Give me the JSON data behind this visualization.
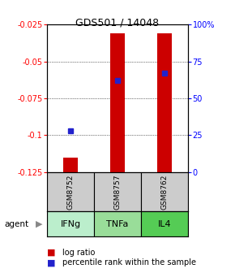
{
  "title": "GDS501 / 14048",
  "samples": [
    "GSM8752",
    "GSM8757",
    "GSM8762"
  ],
  "agents": [
    "IFNg",
    "TNFa",
    "IL4"
  ],
  "log_ratios": [
    -0.115,
    -0.031,
    -0.031
  ],
  "log_ratio_base": -0.125,
  "percentile_ranks": [
    28,
    62,
    67
  ],
  "ylim_left": [
    -0.125,
    -0.025
  ],
  "yticks_left": [
    -0.125,
    -0.1,
    -0.075,
    -0.05,
    -0.025
  ],
  "ylim_right": [
    0,
    100
  ],
  "yticks_right": [
    0,
    25,
    50,
    75,
    100
  ],
  "ytick_right_labels": [
    "0",
    "25",
    "50",
    "75",
    "100%"
  ],
  "bar_color": "#cc0000",
  "dot_color": "#2222cc",
  "sample_box_color": "#cccccc",
  "agent_colors": [
    "#bbeecc",
    "#99dd99",
    "#55cc55"
  ],
  "bar_width": 0.32,
  "figsize": [
    2.9,
    3.36
  ],
  "dpi": 100
}
